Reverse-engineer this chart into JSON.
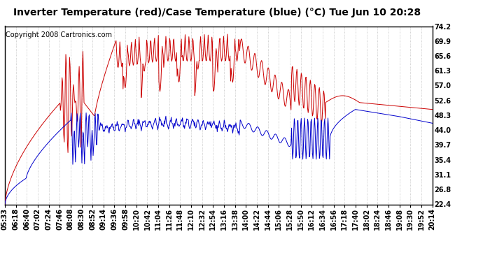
{
  "title": "Inverter Temperature (red)/Case Temperature (blue) (°C) Tue Jun 10 20:28",
  "copyright": "Copyright 2008 Cartronics.com",
  "ylabel_right_ticks": [
    22.4,
    26.8,
    31.1,
    35.4,
    39.7,
    44.0,
    48.3,
    52.6,
    57.0,
    61.3,
    65.6,
    69.9,
    74.2
  ],
  "ylim": [
    22.4,
    74.2
  ],
  "x_labels": [
    "05:33",
    "06:18",
    "06:40",
    "07:02",
    "07:24",
    "07:46",
    "08:08",
    "08:30",
    "08:52",
    "09:14",
    "09:36",
    "09:58",
    "10:20",
    "10:42",
    "11:04",
    "11:26",
    "11:48",
    "12:10",
    "12:32",
    "12:54",
    "13:16",
    "13:38",
    "14:00",
    "14:22",
    "14:44",
    "15:06",
    "15:28",
    "15:50",
    "16:12",
    "16:34",
    "16:56",
    "17:18",
    "17:40",
    "18:02",
    "18:24",
    "18:46",
    "19:08",
    "19:30",
    "19:52",
    "20:14"
  ],
  "background_color": "#ffffff",
  "grid_color": "#aaaaaa",
  "red_color": "#cc0000",
  "blue_color": "#0000cc",
  "title_fontsize": 10,
  "tick_fontsize": 7,
  "copyright_fontsize": 7
}
